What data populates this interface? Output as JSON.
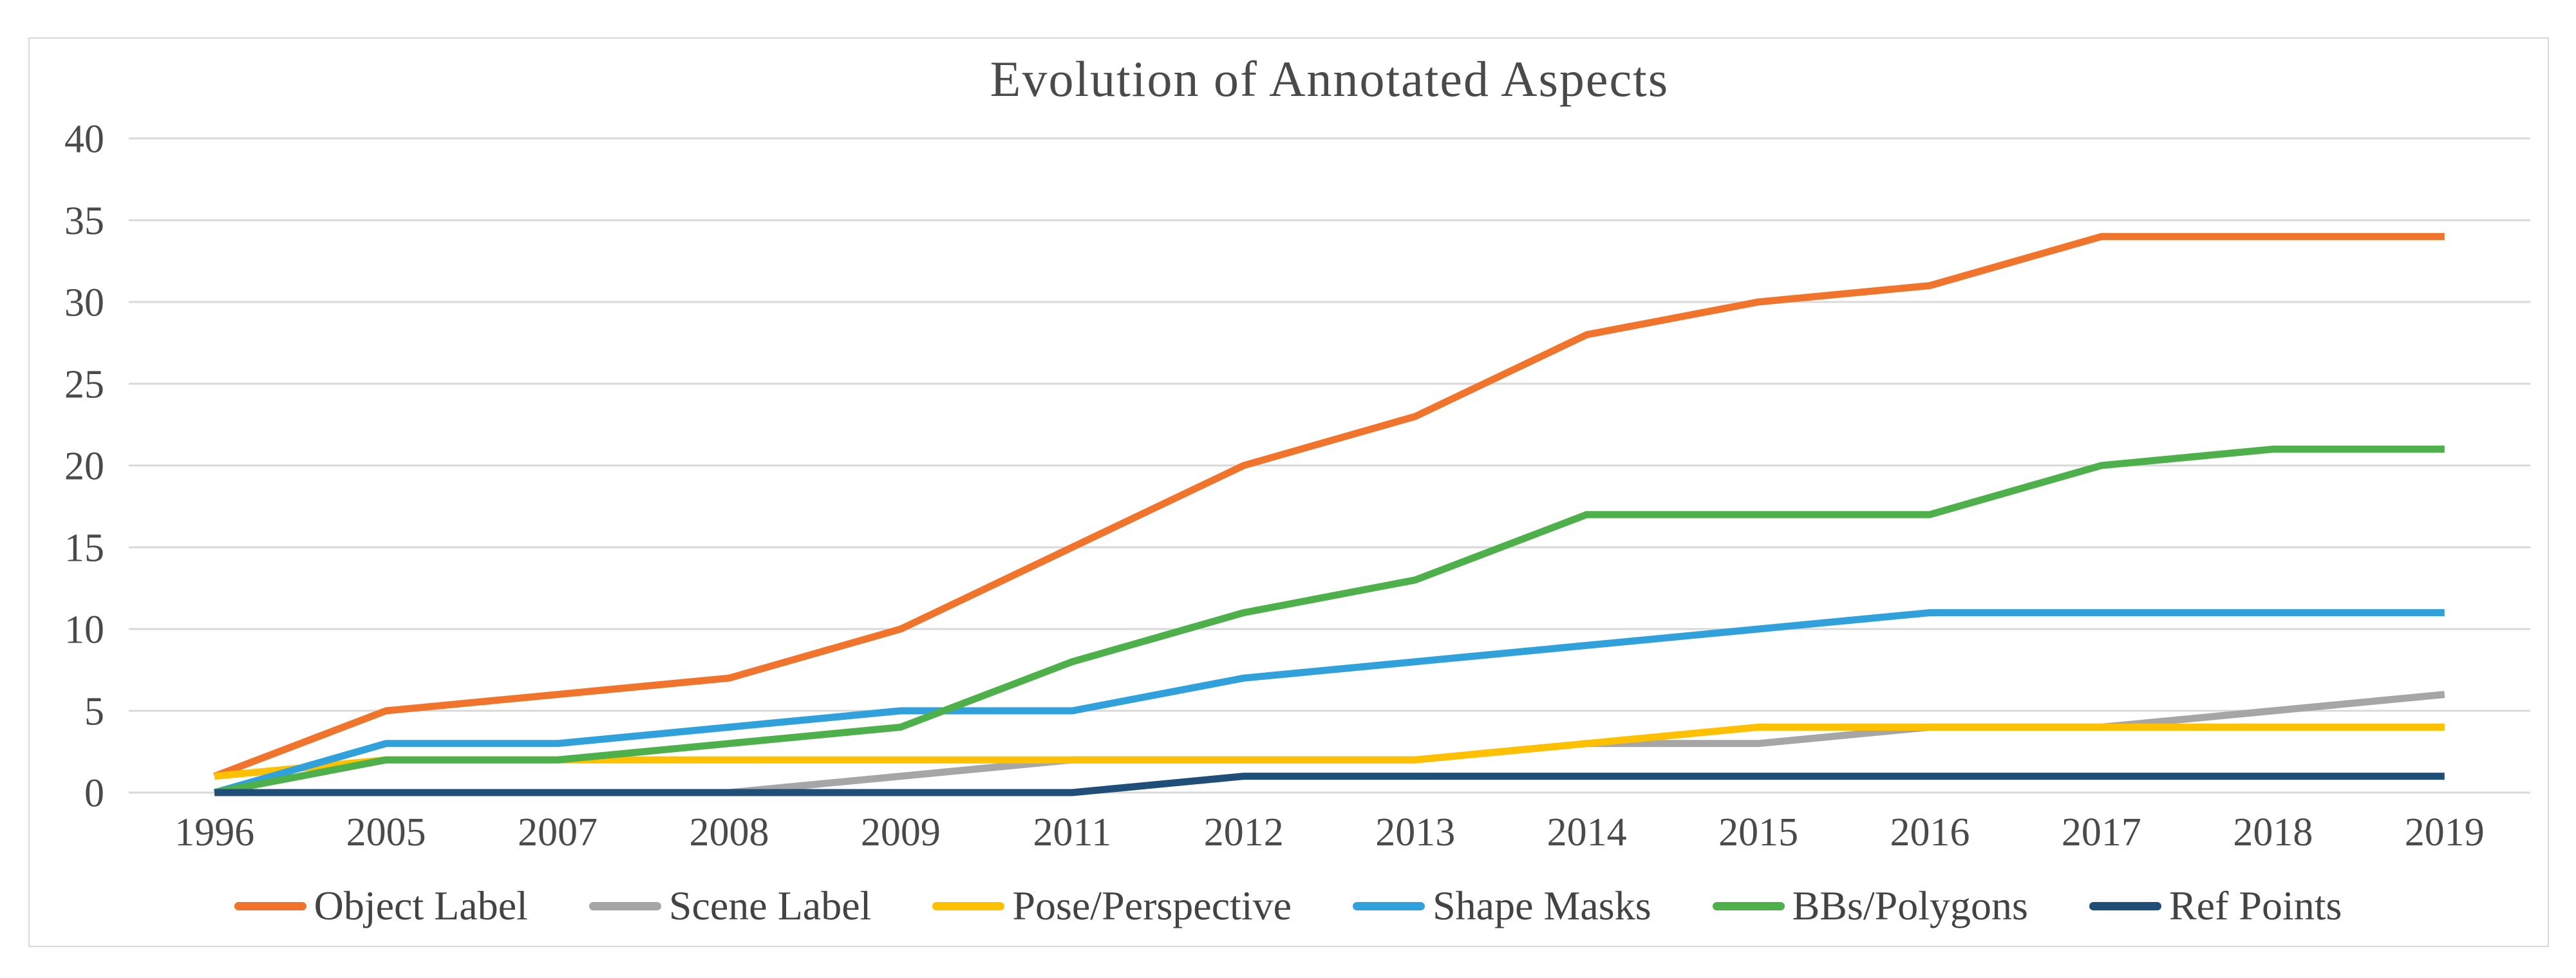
{
  "title": "Evolution of Annotated Aspects",
  "chart_data": {
    "type": "line",
    "title": "Evolution of Annotated Aspects",
    "categories": [
      "1996",
      "2005",
      "2007",
      "2008",
      "2009",
      "2011",
      "2012",
      "2013",
      "2014",
      "2015",
      "2016",
      "2017",
      "2018",
      "2019"
    ],
    "series": [
      {
        "name": "Object Label",
        "color": "#F1742C",
        "values": [
          1,
          5,
          6,
          7,
          10,
          15,
          20,
          23,
          28,
          30,
          31,
          34,
          34,
          34
        ]
      },
      {
        "name": "Scene Label",
        "color": "#A6A6A6",
        "values": [
          0,
          0,
          0,
          0,
          1,
          2,
          2,
          2,
          3,
          3,
          4,
          4,
          5,
          6
        ]
      },
      {
        "name": "Pose/Perspective",
        "color": "#FFC000",
        "values": [
          1,
          2,
          2,
          2,
          2,
          2,
          2,
          2,
          3,
          4,
          4,
          4,
          4,
          4
        ]
      },
      {
        "name": "Shape Masks",
        "color": "#31A1DB",
        "values": [
          0,
          3,
          3,
          4,
          5,
          5,
          7,
          8,
          9,
          10,
          11,
          11,
          11,
          11
        ]
      },
      {
        "name": "BBs/Polygons",
        "color": "#4EB04A",
        "values": [
          0,
          2,
          2,
          3,
          4,
          8,
          11,
          13,
          17,
          17,
          17,
          20,
          21,
          21
        ]
      },
      {
        "name": "Ref Points",
        "color": "#1F4E79",
        "values": [
          0,
          0,
          0,
          0,
          0,
          0,
          1,
          1,
          1,
          1,
          1,
          1,
          1,
          1
        ]
      }
    ],
    "yticks": [
      0,
      5,
      10,
      15,
      20,
      25,
      30,
      35,
      40
    ],
    "ylim": [
      0,
      40
    ],
    "grid": true,
    "legend_position": "bottom"
  },
  "colors": {
    "grid": "#D9D9D9",
    "frame": "#D9D9D9",
    "text": "#4A4A4A",
    "background": "#FFFFFF"
  }
}
